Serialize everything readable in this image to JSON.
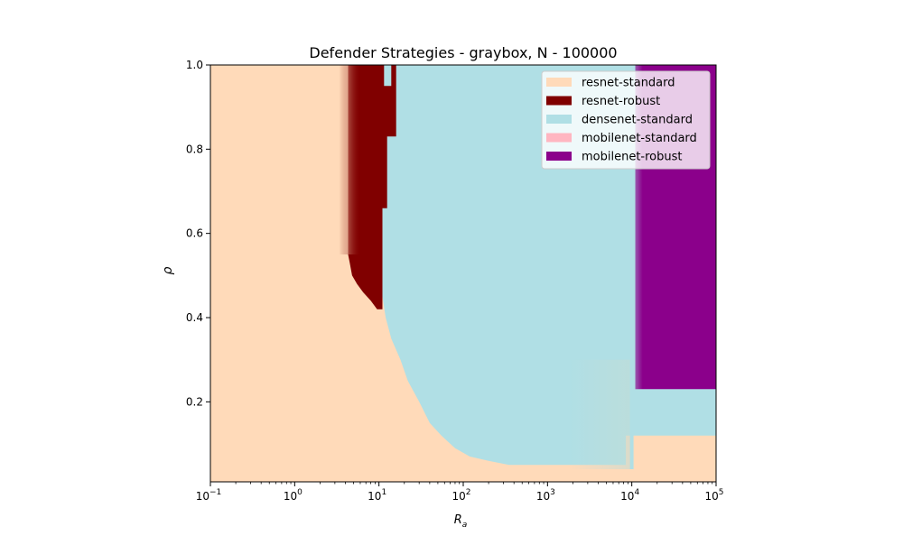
{
  "chart_data": {
    "type": "heatmap",
    "title": "Defender Strategies - graybox, N - 100000",
    "xlabel_base": "R",
    "xlabel_sub": "a",
    "ylabel": "ρ",
    "x_scale": "log",
    "xlim": [
      0.1,
      100000
    ],
    "ylim": [
      0.01,
      1.0
    ],
    "grid": false,
    "legend_position": "top-right",
    "x_ticks": [
      {
        "value": 0.1,
        "base": "10",
        "exp": "−1"
      },
      {
        "value": 1,
        "base": "10",
        "exp": "0"
      },
      {
        "value": 10,
        "base": "10",
        "exp": "1"
      },
      {
        "value": 100,
        "base": "10",
        "exp": "2"
      },
      {
        "value": 1000,
        "base": "10",
        "exp": "3"
      },
      {
        "value": 10000,
        "base": "10",
        "exp": "4"
      },
      {
        "value": 100000,
        "base": "10",
        "exp": "5"
      }
    ],
    "y_ticks": [
      {
        "value": 0.2,
        "label": "0.2"
      },
      {
        "value": 0.4,
        "label": "0.4"
      },
      {
        "value": 0.6,
        "label": "0.6"
      },
      {
        "value": 0.8,
        "label": "0.8"
      },
      {
        "value": 1.0,
        "label": "1.0"
      }
    ],
    "series": [
      {
        "name": "resnet-standard",
        "color": "#ffdab9"
      },
      {
        "name": "resnet-robust",
        "color": "#800000"
      },
      {
        "name": "densenet-standard",
        "color": "#b0dfe5"
      },
      {
        "name": "mobilenet-standard",
        "color": "#ffb6c1"
      },
      {
        "name": "mobilenet-robust",
        "color": "#8b008b"
      }
    ],
    "background_strategy": "resnet-standard",
    "regions": [
      {
        "strategy": "densenet-standard",
        "points": [
          [
            11,
            1.0
          ],
          [
            100000,
            1.0
          ],
          [
            100000,
            0.12
          ],
          [
            10500,
            0.12
          ],
          [
            10500,
            0.04
          ],
          [
            9500,
            0.04
          ],
          [
            9500,
            0.12
          ],
          [
            8500,
            0.12
          ],
          [
            8500,
            0.05
          ],
          [
            350,
            0.05
          ],
          [
            200,
            0.06
          ],
          [
            120,
            0.07
          ],
          [
            80,
            0.09
          ],
          [
            55,
            0.12
          ],
          [
            40,
            0.15
          ],
          [
            30,
            0.2
          ],
          [
            22,
            0.25
          ],
          [
            18,
            0.3
          ],
          [
            14,
            0.35
          ],
          [
            12,
            0.4
          ],
          [
            11,
            0.45
          ]
        ]
      },
      {
        "strategy": "resnet-robust",
        "points": [
          [
            4.3,
            1.0
          ],
          [
            11.5,
            1.0
          ],
          [
            11.5,
            0.95
          ],
          [
            14,
            0.95
          ],
          [
            14,
            1.0
          ],
          [
            16,
            1.0
          ],
          [
            16,
            0.83
          ],
          [
            12.5,
            0.83
          ],
          [
            12.5,
            0.66
          ],
          [
            11,
            0.66
          ],
          [
            11,
            0.42
          ],
          [
            9.5,
            0.42
          ],
          [
            8,
            0.44
          ],
          [
            6.5,
            0.46
          ],
          [
            5.5,
            0.48
          ],
          [
            4.8,
            0.5
          ],
          [
            4.5,
            0.53
          ],
          [
            4.3,
            0.55
          ]
        ]
      },
      {
        "strategy": "mobilenet-robust",
        "points": [
          [
            11000,
            1.0
          ],
          [
            100000,
            1.0
          ],
          [
            100000,
            0.23
          ],
          [
            11000,
            0.23
          ]
        ]
      }
    ]
  }
}
